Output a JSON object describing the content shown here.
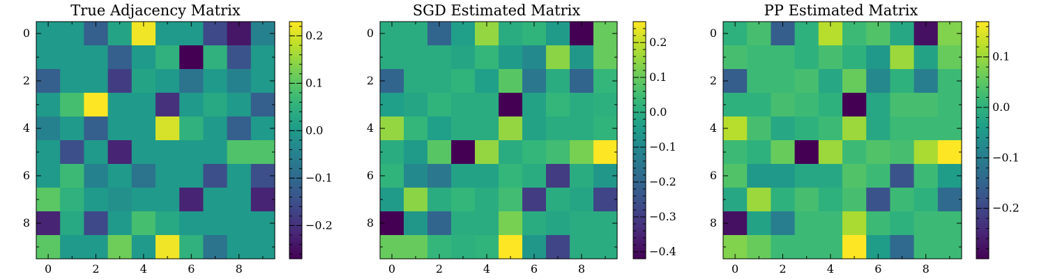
{
  "chart_data": [
    {
      "type": "heatmap",
      "title": "True Adjacency Matrix",
      "xticks": [
        0,
        2,
        4,
        6,
        8
      ],
      "yticks": [
        0,
        2,
        4,
        6,
        8
      ],
      "colorbar": {
        "range": [
          -0.27,
          0.23
        ],
        "ticks": [
          -0.2,
          -0.1,
          0.0,
          0.1,
          0.2
        ],
        "tick_labels": [
          "−0.2",
          "−0.1",
          "0.0",
          "0.1",
          "0.2"
        ]
      },
      "colormap": "viridis",
      "values": [
        [
          0.0,
          0.0,
          -0.12,
          0.02,
          0.22,
          0.0,
          0.0,
          -0.16,
          -0.24,
          -0.05
        ],
        [
          0.0,
          0.0,
          0.0,
          -0.12,
          0.0,
          0.05,
          -0.27,
          0.05,
          -0.14,
          0.0
        ],
        [
          -0.12,
          0.0,
          0.0,
          -0.18,
          0.02,
          0.0,
          -0.08,
          0.0,
          -0.05,
          0.0
        ],
        [
          0.0,
          0.08,
          0.23,
          0.0,
          0.0,
          -0.2,
          0.0,
          0.03,
          0.0,
          -0.12
        ],
        [
          -0.05,
          0.0,
          -0.12,
          0.0,
          0.0,
          0.2,
          0.05,
          0.0,
          -0.12,
          0.0
        ],
        [
          0.0,
          -0.15,
          0.0,
          -0.22,
          0.0,
          0.0,
          0.0,
          0.0,
          0.09,
          0.09
        ],
        [
          0.0,
          0.07,
          -0.05,
          0.0,
          -0.08,
          0.0,
          0.0,
          -0.15,
          0.0,
          -0.15
        ],
        [
          0.1,
          0.05,
          0.0,
          -0.02,
          0.0,
          0.0,
          -0.22,
          0.0,
          0.0,
          -0.22
        ],
        [
          -0.22,
          0.03,
          -0.16,
          0.0,
          0.08,
          0.03,
          0.0,
          0.0,
          0.0,
          0.0
        ],
        [
          0.1,
          0.0,
          0.0,
          0.12,
          0.0,
          0.22,
          0.05,
          -0.08,
          0.0,
          0.0
        ]
      ]
    },
    {
      "type": "heatmap",
      "title": "SGD Estimated Matrix",
      "xticks": [
        0,
        2,
        4,
        6,
        8
      ],
      "yticks": [
        0,
        2,
        4,
        6,
        8
      ],
      "colorbar": {
        "range": [
          -0.42,
          0.26
        ],
        "ticks": [
          -0.4,
          -0.3,
          -0.2,
          -0.1,
          0.0,
          0.1,
          0.2
        ],
        "tick_labels": [
          "−0.4",
          "−0.3",
          "−0.2",
          "−0.1",
          "0.0",
          "0.1",
          "0.2"
        ]
      },
      "colormap": "viridis",
      "values": [
        [
          0.0,
          0.0,
          -0.2,
          -0.04,
          0.15,
          0.0,
          0.02,
          -0.05,
          -0.42,
          0.1
        ],
        [
          0.0,
          0.0,
          0.0,
          -0.02,
          0.03,
          -0.05,
          -0.1,
          0.14,
          -0.06,
          0.1
        ],
        [
          -0.2,
          0.0,
          0.0,
          0.02,
          -0.04,
          0.08,
          -0.15,
          0.0,
          -0.2,
          0.03
        ],
        [
          -0.04,
          -0.02,
          0.02,
          0.0,
          0.0,
          -0.42,
          -0.03,
          0.03,
          0.0,
          0.01
        ],
        [
          0.15,
          0.03,
          -0.04,
          0.0,
          0.0,
          0.15,
          -0.03,
          0.0,
          0.0,
          0.02
        ],
        [
          0.0,
          -0.05,
          0.08,
          -0.42,
          0.15,
          0.0,
          0.03,
          0.05,
          0.12,
          0.26
        ],
        [
          0.02,
          -0.1,
          -0.15,
          -0.03,
          -0.03,
          0.03,
          0.0,
          -0.3,
          0.0,
          -0.06
        ],
        [
          -0.05,
          0.14,
          0.0,
          0.03,
          0.0,
          0.05,
          -0.3,
          0.0,
          -0.02,
          -0.28
        ],
        [
          -0.42,
          -0.06,
          -0.2,
          0.0,
          0.0,
          0.12,
          0.0,
          -0.02,
          0.0,
          0.0
        ],
        [
          0.1,
          0.1,
          0.03,
          0.01,
          0.02,
          0.26,
          -0.06,
          -0.28,
          0.0,
          0.0
        ]
      ]
    },
    {
      "type": "heatmap",
      "title": "PP Estimated Matrix",
      "xticks": [
        0,
        2,
        4,
        6,
        8
      ],
      "yticks": [
        0,
        2,
        4,
        6,
        8
      ],
      "colorbar": {
        "range": [
          -0.3,
          0.17
        ],
        "ticks": [
          -0.2,
          -0.1,
          0.0,
          0.1
        ],
        "tick_labels": [
          "−0.2",
          "−0.1",
          "0.0",
          "0.1"
        ]
      },
      "colormap": "viridis",
      "values": [
        [
          0.0,
          0.03,
          -0.16,
          0.0,
          0.12,
          0.02,
          0.04,
          -0.02,
          -0.28,
          0.08
        ],
        [
          0.03,
          0.02,
          0.02,
          0.0,
          0.03,
          0.0,
          -0.05,
          0.1,
          -0.03,
          0.06
        ],
        [
          -0.16,
          0.02,
          0.02,
          0.03,
          -0.02,
          0.06,
          -0.08,
          0.0,
          -0.1,
          0.02
        ],
        [
          0.0,
          0.0,
          0.03,
          0.02,
          0.0,
          -0.3,
          -0.02,
          0.03,
          0.03,
          0.02
        ],
        [
          0.12,
          0.03,
          -0.02,
          0.0,
          0.02,
          0.1,
          -0.02,
          0.02,
          0.02,
          0.02
        ],
        [
          0.02,
          0.0,
          0.06,
          -0.3,
          0.1,
          0.02,
          0.04,
          0.03,
          0.11,
          0.17
        ],
        [
          0.04,
          -0.05,
          -0.05,
          -0.02,
          -0.02,
          0.04,
          0.02,
          -0.18,
          0.02,
          -0.04
        ],
        [
          -0.02,
          0.1,
          0.0,
          0.03,
          0.0,
          0.03,
          -0.18,
          0.02,
          0.0,
          -0.14
        ],
        [
          -0.28,
          -0.03,
          -0.1,
          0.02,
          0.02,
          0.11,
          0.02,
          0.0,
          0.02,
          0.02
        ],
        [
          0.08,
          0.06,
          0.02,
          0.02,
          0.02,
          0.17,
          -0.04,
          -0.14,
          0.02,
          0.02
        ]
      ]
    }
  ]
}
